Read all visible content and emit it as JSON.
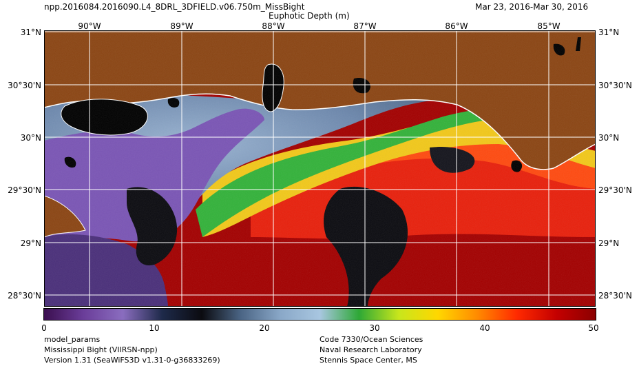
{
  "header": {
    "product": "npp.2016084.2016090.L4_8DRL_3DFIELD.v06.750m_MissBight",
    "date_range": "Mar 23, 2016-Mar 30, 2016",
    "parameter": "Euphotic Depth (m)"
  },
  "axes": {
    "lon_labels": [
      "90°W",
      "89°W",
      "88°W",
      "87°W",
      "86°W",
      "85°W"
    ],
    "lat_labels": [
      "31°N",
      "30°30'N",
      "30°N",
      "29°30'N",
      "29°N",
      "28°30'N"
    ]
  },
  "colorbar": {
    "min": 0,
    "max": 50,
    "tick_labels": [
      "0",
      "10",
      "20",
      "30",
      "40",
      "50"
    ],
    "colors": [
      "#3b0f4f",
      "#6a3d99",
      "#8a6dbf",
      "#1e2a4a",
      "#0b0b10",
      "#4b6585",
      "#8aa8c8",
      "#a8c6e0",
      "#2ea836",
      "#c8e61c",
      "#ffd700",
      "#ff8a00",
      "#ff2a00",
      "#c40000",
      "#8b0000"
    ]
  },
  "map_colors": {
    "land": "#8b4513",
    "water_deep": "#a30000",
    "coast_outline": "#ffffff"
  },
  "footer": {
    "left": [
      "model_params",
      "Mississippi Bight (VIIRSN-npp)",
      "Version 1.31 (SeaWiFS3D v1.31-0-g36833269)"
    ],
    "right": [
      "Code 7330/Ocean Sciences",
      "Naval Research Laboratory",
      "Stennis Space Center, MS"
    ]
  }
}
